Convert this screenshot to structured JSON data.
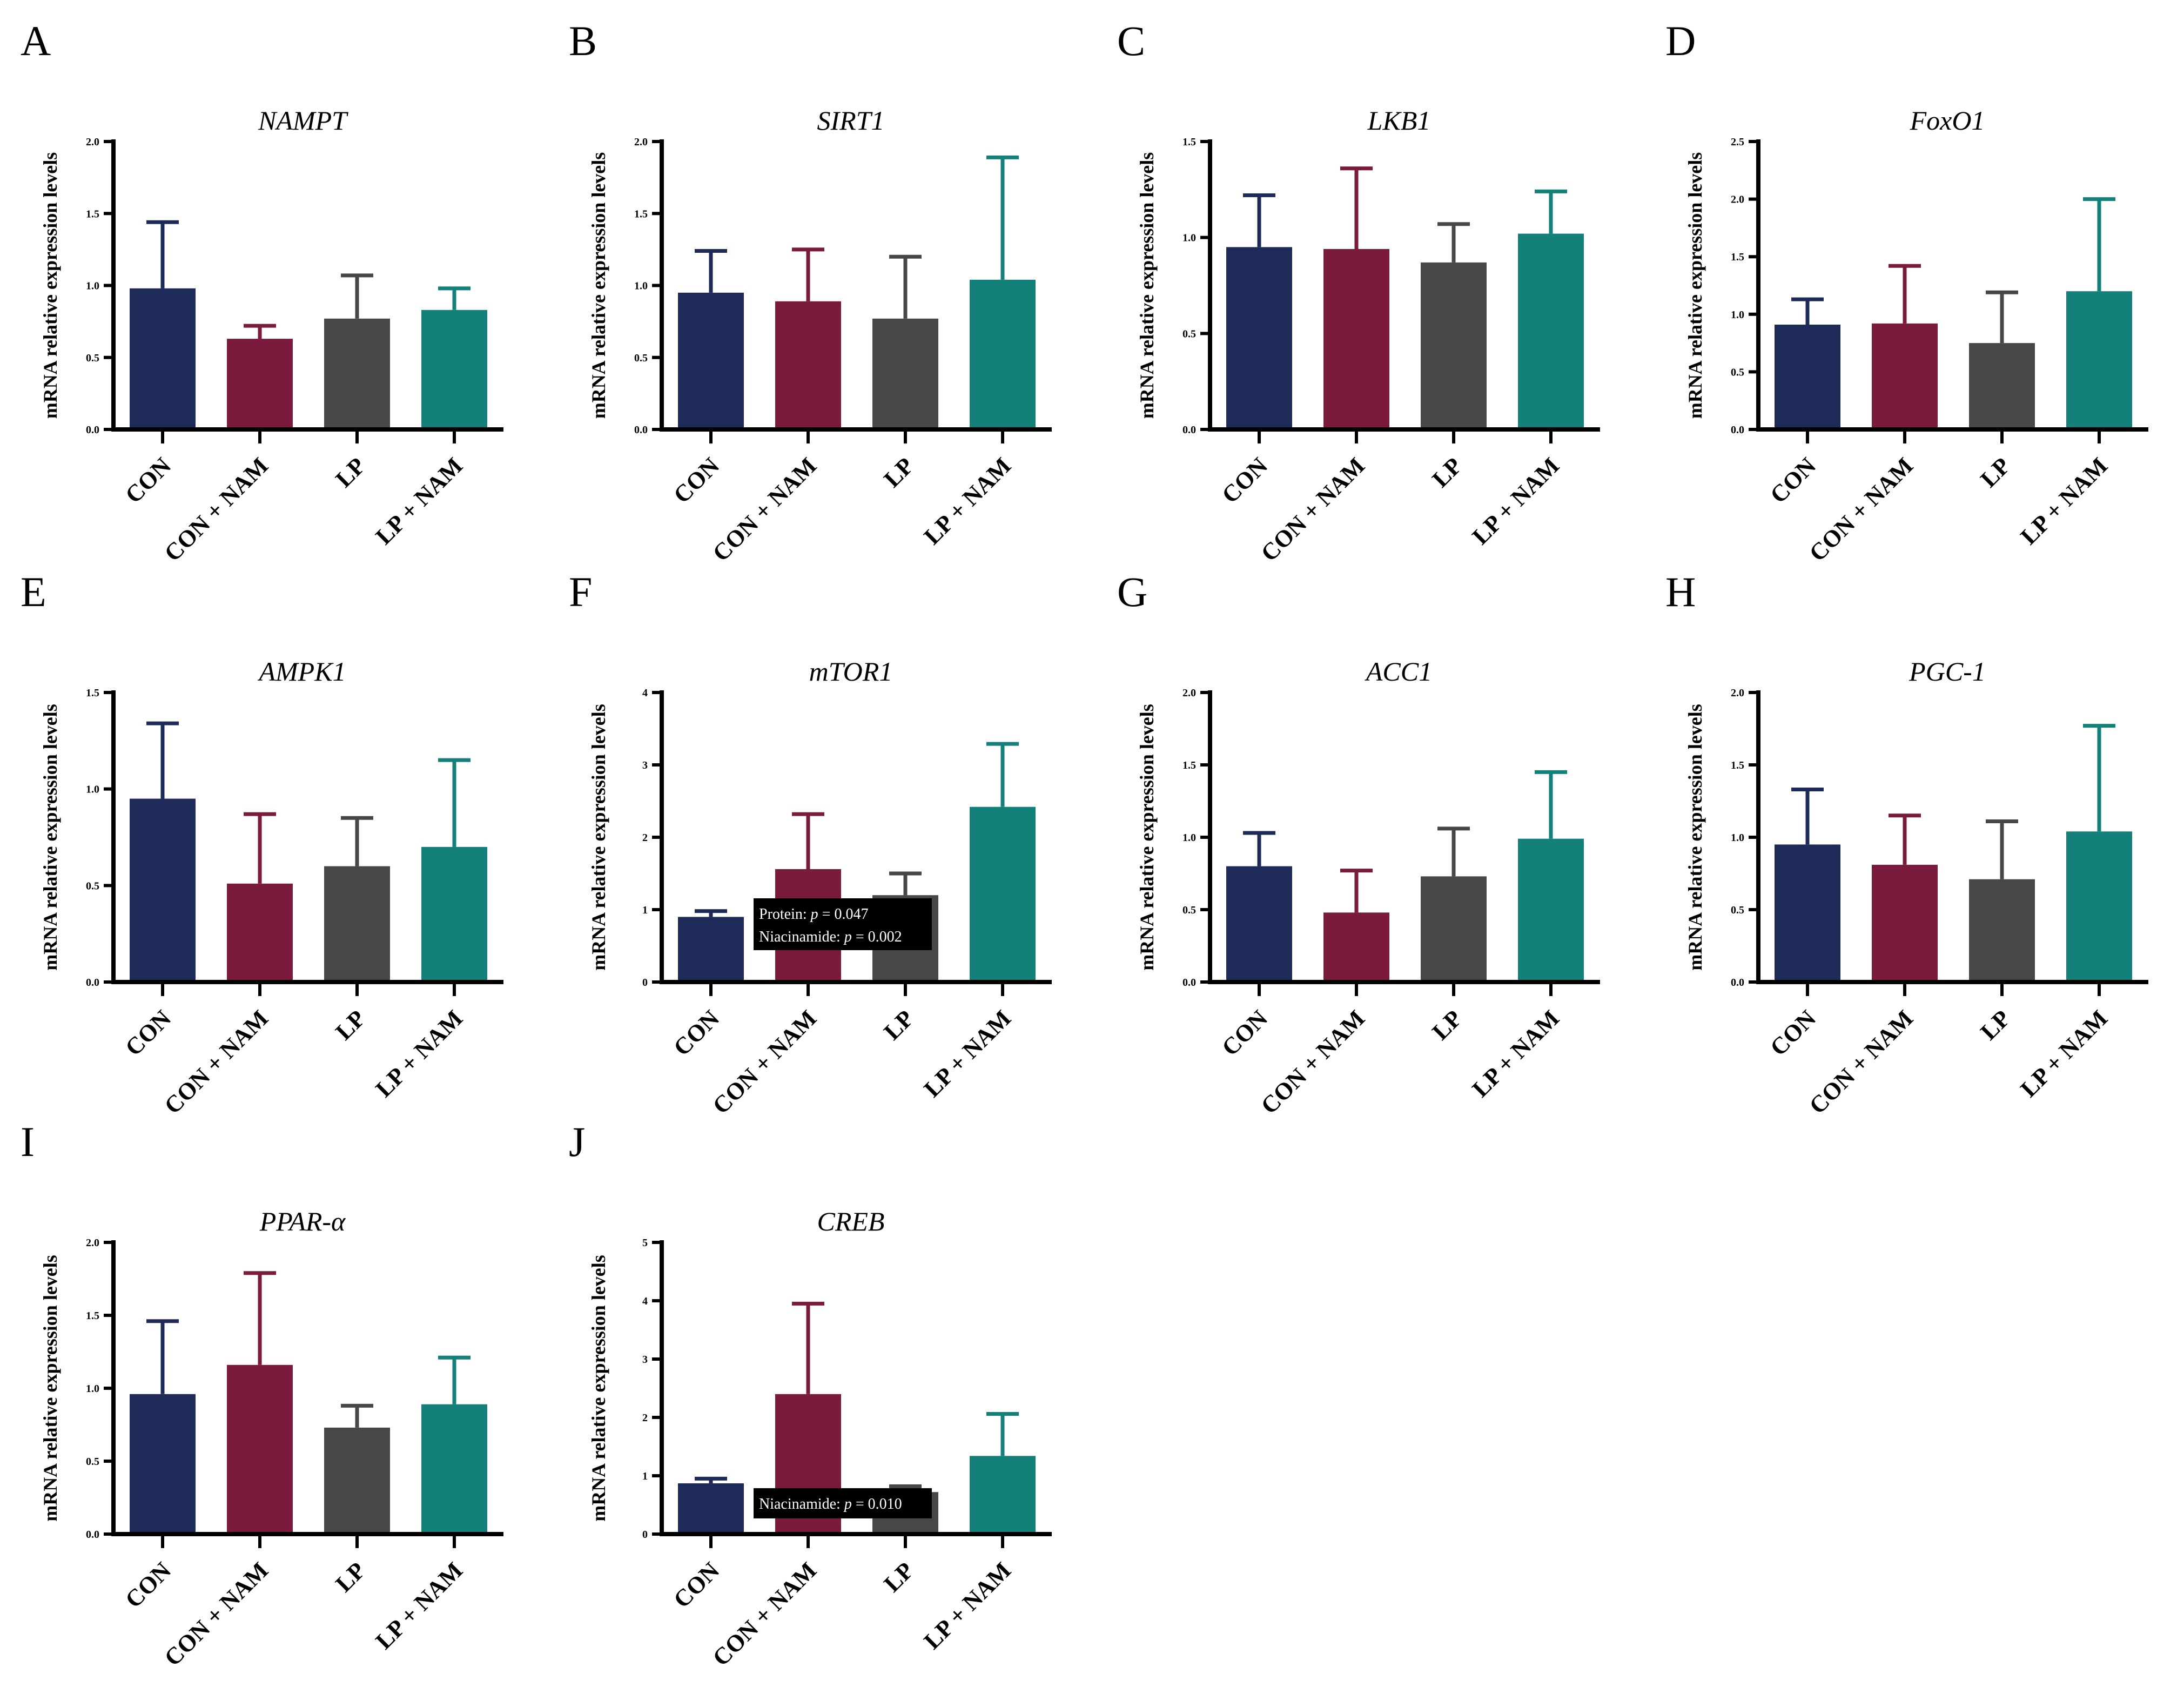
{
  "figure": {
    "groups": [
      "CON",
      "CON + NAM",
      "LP",
      "LP + NAM"
    ],
    "colors": [
      "#1e2b58",
      "#7a1a3d",
      "#474747",
      "#13807a"
    ],
    "ylabel": "mRNA relative expression levels"
  },
  "chart_data": [
    {
      "type": "bar",
      "letter": "A",
      "title": "NAMPT",
      "ylabel": "mRNA relative expression levels",
      "categories": [
        "CON",
        "CON + NAM",
        "LP",
        "LP + NAM"
      ],
      "values": [
        0.98,
        0.63,
        0.77,
        0.83
      ],
      "errors": [
        0.46,
        0.09,
        0.3,
        0.15
      ],
      "ylim": [
        0,
        2.0
      ],
      "yticks": [
        0.0,
        0.5,
        1.0,
        1.5,
        2.0
      ],
      "ytick_labels": [
        "0.0",
        "0.5",
        "1.0",
        "1.5",
        "2.0"
      ],
      "annotations": []
    },
    {
      "type": "bar",
      "letter": "B",
      "title": "SIRT1",
      "ylabel": "mRNA relative expression levels",
      "categories": [
        "CON",
        "CON + NAM",
        "LP",
        "LP + NAM"
      ],
      "values": [
        0.95,
        0.89,
        0.77,
        1.04
      ],
      "errors": [
        0.29,
        0.36,
        0.43,
        0.85
      ],
      "ylim": [
        0,
        2.0
      ],
      "yticks": [
        0.0,
        0.5,
        1.0,
        1.5,
        2.0
      ],
      "ytick_labels": [
        "0.0",
        "0.5",
        "1.0",
        "1.5",
        "2.0"
      ],
      "annotations": []
    },
    {
      "type": "bar",
      "letter": "C",
      "title": "LKB1",
      "ylabel": "mRNA relative expression levels",
      "categories": [
        "CON",
        "CON + NAM",
        "LP",
        "LP + NAM"
      ],
      "values": [
        0.95,
        0.94,
        0.87,
        1.02
      ],
      "errors": [
        0.27,
        0.42,
        0.2,
        0.22
      ],
      "ylim": [
        0,
        1.5
      ],
      "yticks": [
        0.0,
        0.5,
        1.0,
        1.5
      ],
      "ytick_labels": [
        "0.0",
        "0.5",
        "1.0",
        "1.5"
      ],
      "annotations": []
    },
    {
      "type": "bar",
      "letter": "D",
      "title": "FoxO1",
      "ylabel": "mRNA relative expression levels",
      "categories": [
        "CON",
        "CON + NAM",
        "LP",
        "LP + NAM"
      ],
      "values": [
        0.91,
        0.92,
        0.75,
        1.2
      ],
      "errors": [
        0.22,
        0.5,
        0.44,
        0.8
      ],
      "ylim": [
        0,
        2.5
      ],
      "yticks": [
        0.0,
        0.5,
        1.0,
        1.5,
        2.0,
        2.5
      ],
      "ytick_labels": [
        "0.0",
        "0.5",
        "1.0",
        "1.5",
        "2.0",
        "2.5"
      ],
      "annotations": []
    },
    {
      "type": "bar",
      "letter": "E",
      "title": "AMPK1",
      "ylabel": "mRNA relative expression levels",
      "categories": [
        "CON",
        "CON + NAM",
        "LP",
        "LP + NAM"
      ],
      "values": [
        0.95,
        0.51,
        0.6,
        0.7
      ],
      "errors": [
        0.39,
        0.36,
        0.25,
        0.45
      ],
      "ylim": [
        0,
        1.5
      ],
      "yticks": [
        0.0,
        0.5,
        1.0,
        1.5
      ],
      "ytick_labels": [
        "0.0",
        "0.5",
        "1.0",
        "1.5"
      ],
      "annotations": []
    },
    {
      "type": "bar",
      "letter": "F",
      "title": "mTOR1",
      "ylabel": "mRNA relative expression levels",
      "categories": [
        "CON",
        "CON + NAM",
        "LP",
        "LP + NAM"
      ],
      "values": [
        0.9,
        1.56,
        1.2,
        2.42
      ],
      "errors": [
        0.08,
        0.76,
        0.3,
        0.87
      ],
      "ylim": [
        0,
        4
      ],
      "yticks": [
        0,
        1,
        2,
        3,
        4
      ],
      "ytick_labels": [
        "0",
        "1",
        "2",
        "3",
        "4"
      ],
      "annotations": [
        {
          "line1": "Protein: ",
          "p": "p",
          "rest1": " = 0.047",
          "line2": "Niacinamide: ",
          "rest2": " = 0.002"
        }
      ]
    },
    {
      "type": "bar",
      "letter": "G",
      "title": "ACC1",
      "ylabel": "mRNA relative expression levels",
      "categories": [
        "CON",
        "CON + NAM",
        "LP",
        "LP + NAM"
      ],
      "values": [
        0.8,
        0.48,
        0.73,
        0.99
      ],
      "errors": [
        0.23,
        0.29,
        0.33,
        0.46
      ],
      "ylim": [
        0,
        2.0
      ],
      "yticks": [
        0.0,
        0.5,
        1.0,
        1.5,
        2.0
      ],
      "ytick_labels": [
        "0.0",
        "0.5",
        "1.0",
        "1.5",
        "2.0"
      ],
      "annotations": []
    },
    {
      "type": "bar",
      "letter": "H",
      "title": "PGC-1",
      "ylabel": "mRNA relative expression levels",
      "categories": [
        "CON",
        "CON + NAM",
        "LP",
        "LP + NAM"
      ],
      "values": [
        0.95,
        0.81,
        0.71,
        1.04
      ],
      "errors": [
        0.38,
        0.34,
        0.4,
        0.73
      ],
      "ylim": [
        0,
        2.0
      ],
      "yticks": [
        0.0,
        0.5,
        1.0,
        1.5,
        2.0
      ],
      "ytick_labels": [
        "0.0",
        "0.5",
        "1.0",
        "1.5",
        "2.0"
      ],
      "annotations": []
    },
    {
      "type": "bar",
      "letter": "I",
      "title": "PPAR-α",
      "ylabel": "mRNA relative expression levels",
      "categories": [
        "CON",
        "CON + NAM",
        "LP",
        "LP + NAM"
      ],
      "values": [
        0.96,
        1.16,
        0.73,
        0.89
      ],
      "errors": [
        0.5,
        0.63,
        0.15,
        0.32
      ],
      "ylim": [
        0,
        2.0
      ],
      "yticks": [
        0.0,
        0.5,
        1.0,
        1.5,
        2.0
      ],
      "ytick_labels": [
        "0.0",
        "0.5",
        "1.0",
        "1.5",
        "2.0"
      ],
      "annotations": []
    },
    {
      "type": "bar",
      "letter": "J",
      "title": "CREB",
      "ylabel": "mRNA relative expression levels",
      "categories": [
        "CON",
        "CON + NAM",
        "LP",
        "LP + NAM"
      ],
      "values": [
        0.87,
        2.4,
        0.72,
        1.34
      ],
      "errors": [
        0.08,
        1.55,
        0.1,
        0.72
      ],
      "ylim": [
        0,
        5
      ],
      "yticks": [
        0,
        1,
        2,
        3,
        4,
        5
      ],
      "ytick_labels": [
        "0",
        "1",
        "2",
        "3",
        "4",
        "5"
      ],
      "annotations": [
        {
          "line1": "Niacinamide: ",
          "p": "p",
          "rest1": " = 0.010"
        }
      ]
    }
  ]
}
